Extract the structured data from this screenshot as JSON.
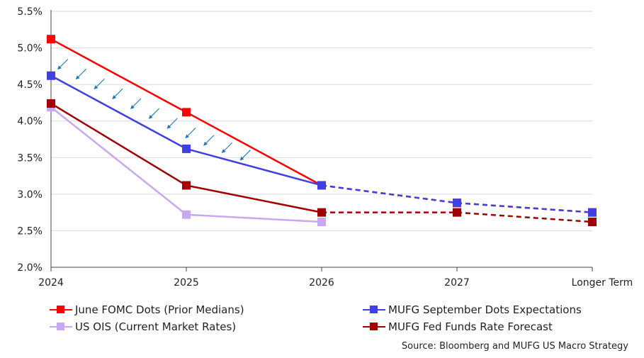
{
  "chart_data": {
    "type": "line",
    "categories": [
      "2024",
      "2025",
      "2026",
      "2027",
      "Longer Term"
    ],
    "ylim": [
      2.0,
      5.5
    ],
    "yticks": [
      "2.0%",
      "2.5%",
      "3.0%",
      "3.5%",
      "4.0%",
      "4.5%",
      "5.0%",
      "5.5%"
    ],
    "ytick_values": [
      2.0,
      2.5,
      3.0,
      3.5,
      4.0,
      4.5,
      5.0,
      5.5
    ],
    "grid": true,
    "legend_position": "bottom",
    "series": [
      {
        "name": "June FOMC Dots (Prior Medians)",
        "color": "#ff0000",
        "values": [
          5.12,
          4.12,
          3.12,
          2.88,
          2.75
        ],
        "dashed_from": 2
      },
      {
        "name": "MUFG September Dots Expectations",
        "color": "#4040e0",
        "values": [
          4.62,
          3.62,
          3.12,
          2.88,
          2.75
        ],
        "dashed_from": 2
      },
      {
        "name": "US OIS (Current Market Rates)",
        "color": "#c8a8f0",
        "values": [
          4.19,
          2.72,
          2.62,
          null,
          null
        ],
        "dashed_from": null
      },
      {
        "name": "MUFG Fed Funds Rate Forecast",
        "color": "#a00000",
        "values": [
          4.24,
          3.12,
          2.75,
          2.75,
          2.62
        ],
        "dashed_from": 2
      }
    ],
    "annotation": {
      "type": "arrows",
      "color": "#1f77b4",
      "description_series": [
        "June FOMC Dots (Prior Medians)",
        "MUFG September Dots Expectations"
      ]
    }
  },
  "legend": {
    "items": [
      {
        "label": "June FOMC Dots (Prior Medians)",
        "color": "#ff0000"
      },
      {
        "label": "MUFG September Dots Expectations",
        "color": "#4040e0"
      },
      {
        "label": "US OIS (Current Market Rates)",
        "color": "#c8a8f0"
      },
      {
        "label": "MUFG Fed Funds Rate Forecast",
        "color": "#a00000"
      }
    ]
  },
  "source": "Source: Bloomberg and MUFG US Macro Strategy"
}
